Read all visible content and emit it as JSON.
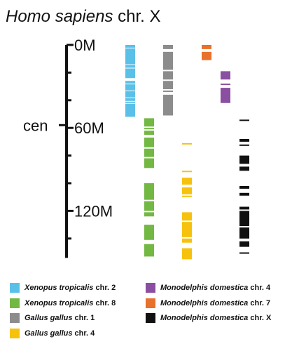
{
  "title": {
    "species": "Homo sapiens",
    "chromosome": "chr. X"
  },
  "axis": {
    "unit": "M",
    "ticks": [
      {
        "value": 0,
        "label": "0M"
      },
      {
        "value": 60,
        "label": "60M"
      },
      {
        "value": 120,
        "label": "120M"
      }
    ],
    "minor_ticks": [
      20,
      40,
      80,
      100,
      140
    ],
    "centromere": {
      "value": 58,
      "label": "cen"
    },
    "range": [
      0,
      155
    ]
  },
  "colors": {
    "xtrop2": "#5bc0e8",
    "xtrop8": "#72b843",
    "gallus1": "#8c8c8c",
    "gallus4": "#f6c20e",
    "mdom4": "#8a4fa0",
    "mdom7": "#e8712c",
    "mdomX": "#111111"
  },
  "chart_data": {
    "type": "ideogram",
    "reference": "Homo sapiens chr. X",
    "unit": "Mb",
    "tracks": [
      {
        "key": "xtrop2",
        "genus": "Xenopus",
        "species": "tropicalis",
        "chromosome": "chr. 2",
        "blocks": [
          [
            0,
            2
          ],
          [
            2.5,
            14
          ],
          [
            14.5,
            16.5
          ],
          [
            17,
            24
          ],
          [
            26,
            28
          ],
          [
            28.5,
            33
          ],
          [
            33.5,
            38
          ],
          [
            38.5,
            40.5
          ],
          [
            41,
            42
          ],
          [
            42.5,
            52
          ]
        ]
      },
      {
        "key": "xtrop8",
        "genus": "Xenopus",
        "species": "tropicalis",
        "chromosome": "chr. 8",
        "blocks": [
          [
            53,
            59
          ],
          [
            60,
            61
          ],
          [
            62,
            65
          ],
          [
            67,
            74
          ],
          [
            75,
            81
          ],
          [
            82,
            89
          ],
          [
            100,
            112
          ],
          [
            113,
            120
          ],
          [
            121,
            124
          ],
          [
            130,
            141
          ],
          [
            144,
            153
          ]
        ]
      },
      {
        "key": "gallus1",
        "genus": "Gallus",
        "species": "gallus",
        "chromosome": "chr. 1",
        "blocks": [
          [
            0,
            3
          ],
          [
            5,
            18
          ],
          [
            19,
            25
          ],
          [
            26,
            32
          ],
          [
            33,
            34
          ],
          [
            36,
            51
          ]
        ]
      },
      {
        "key": "gallus4",
        "genus": "Gallus",
        "species": "gallus",
        "chromosome": "chr. 4",
        "blocks": [
          [
            71,
            72
          ],
          [
            91,
            92
          ],
          [
            96,
            101
          ],
          [
            103,
            108
          ],
          [
            109,
            110
          ],
          [
            121,
            127
          ],
          [
            128,
            139
          ],
          [
            140,
            143
          ],
          [
            147,
            155
          ]
        ]
      },
      {
        "key": "mdom4",
        "genus": "Monodelphis",
        "species": "domestica",
        "chromosome": "chr. 4",
        "blocks": [
          [
            19,
            25
          ],
          [
            28,
            29
          ],
          [
            31,
            42
          ]
        ]
      },
      {
        "key": "mdom7",
        "genus": "Monodelphis",
        "species": "domestica",
        "chromosome": "chr. 7",
        "blocks": [
          [
            0,
            3
          ],
          [
            5,
            11
          ]
        ]
      },
      {
        "key": "mdomX",
        "genus": "Monodelphis",
        "species": "domestica",
        "chromosome": "chr. X",
        "blocks": [
          [
            54,
            55
          ],
          [
            68,
            70
          ],
          [
            72,
            73
          ],
          [
            80,
            86
          ],
          [
            88,
            91
          ],
          [
            102,
            104
          ],
          [
            107,
            109
          ],
          [
            117,
            119
          ],
          [
            120,
            131
          ],
          [
            132,
            140
          ],
          [
            142,
            146
          ],
          [
            150,
            151
          ]
        ]
      }
    ]
  },
  "legend": {
    "left": [
      {
        "key": "xtrop2",
        "genus": "Xenopus",
        "species": "tropicalis",
        "chromosome": "chr. 2"
      },
      {
        "key": "xtrop8",
        "genus": "Xenopus",
        "species": "tropicalis",
        "chromosome": "chr. 8"
      },
      {
        "key": "gallus1",
        "genus": "Gallus",
        "species": "gallus",
        "chromosome": "chr. 1"
      },
      {
        "key": "gallus4",
        "genus": "Gallus",
        "species": "gallus",
        "chromosome": "chr. 4"
      }
    ],
    "right": [
      {
        "key": "mdom4",
        "genus": "Monodelphis",
        "species": "domestica",
        "chromosome": "chr. 4"
      },
      {
        "key": "mdom7",
        "genus": "Monodelphis",
        "species": "domestica",
        "chromosome": "chr. 7"
      },
      {
        "key": "mdomX",
        "genus": "Monodelphis",
        "species": "domestica",
        "chromosome": "chr. X"
      }
    ]
  }
}
